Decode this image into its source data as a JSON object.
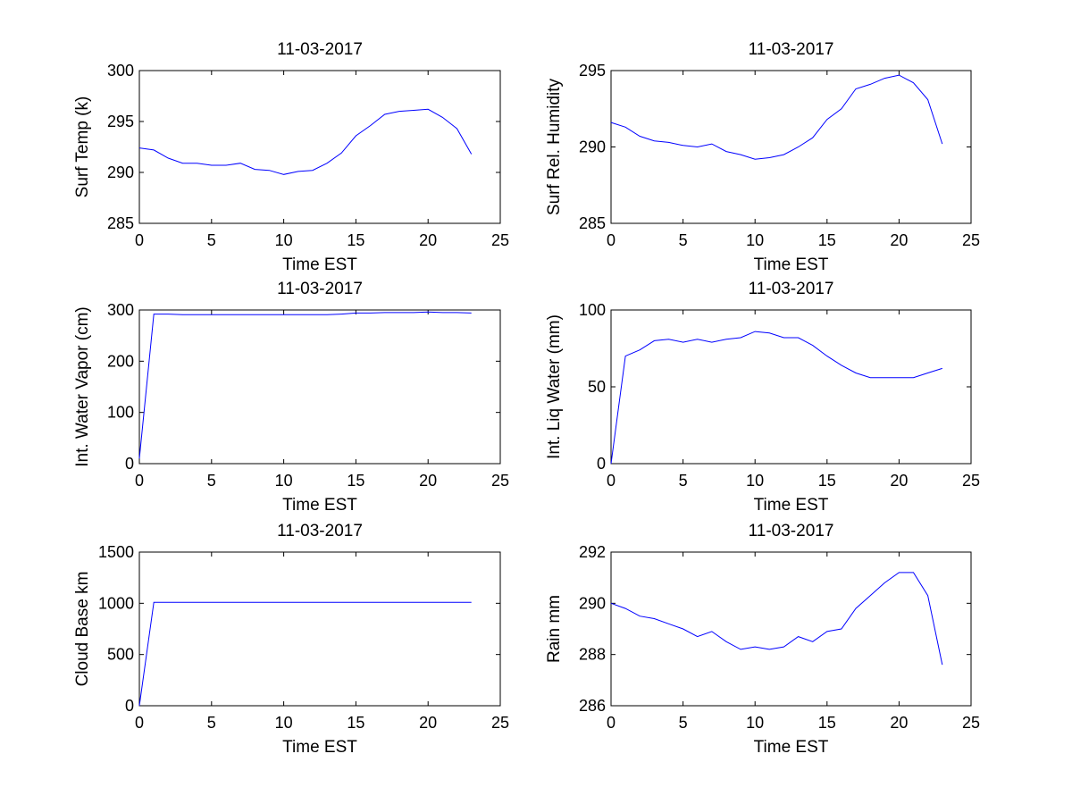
{
  "chart_data": [
    {
      "type": "line",
      "title": "11-03-2017",
      "xlabel": "Time EST",
      "ylabel": "Surf Temp (k)",
      "xlim": [
        0,
        25
      ],
      "ylim": [
        285,
        300
      ],
      "xticks": [
        0,
        5,
        10,
        15,
        20,
        25
      ],
      "yticks": [
        285,
        290,
        295,
        300
      ],
      "grid": false,
      "series": [
        {
          "color": "#0000ff",
          "x": [
            0,
            1,
            2,
            3,
            4,
            5,
            6,
            7,
            8,
            9,
            10,
            11,
            12,
            13,
            14,
            15,
            16,
            17,
            18,
            19,
            20,
            21,
            22,
            23
          ],
          "y": [
            292.4,
            292.2,
            291.4,
            290.9,
            290.9,
            290.7,
            290.7,
            290.9,
            290.3,
            290.2,
            289.8,
            290.1,
            290.2,
            290.9,
            291.9,
            293.6,
            294.6,
            295.7,
            296.0,
            296.1,
            296.2,
            295.4,
            294.3,
            291.8
          ]
        }
      ]
    },
    {
      "type": "line",
      "title": "11-03-2017",
      "xlabel": "Time EST",
      "ylabel": "Surf Rel. Humidity",
      "xlim": [
        0,
        25
      ],
      "ylim": [
        285,
        295
      ],
      "xticks": [
        0,
        5,
        10,
        15,
        20,
        25
      ],
      "yticks": [
        285,
        290,
        295
      ],
      "grid": false,
      "series": [
        {
          "color": "#0000ff",
          "x": [
            0,
            1,
            2,
            3,
            4,
            5,
            6,
            7,
            8,
            9,
            10,
            11,
            12,
            13,
            14,
            15,
            16,
            17,
            18,
            19,
            20,
            21,
            22,
            23
          ],
          "y": [
            291.6,
            291.3,
            290.7,
            290.4,
            290.3,
            290.1,
            290.0,
            290.2,
            289.7,
            289.5,
            289.2,
            289.3,
            289.5,
            290.0,
            290.6,
            291.8,
            292.5,
            293.8,
            294.1,
            294.5,
            294.7,
            294.2,
            293.1,
            290.2
          ]
        }
      ]
    },
    {
      "type": "line",
      "title": "11-03-2017",
      "xlabel": "Time EST",
      "ylabel": "Int. Water Vapor (cm)",
      "xlim": [
        0,
        25
      ],
      "ylim": [
        0,
        300
      ],
      "xticks": [
        0,
        5,
        10,
        15,
        20,
        25
      ],
      "yticks": [
        0,
        100,
        200,
        300
      ],
      "grid": false,
      "series": [
        {
          "color": "#0000ff",
          "x": [
            0,
            1,
            2,
            3,
            4,
            5,
            6,
            7,
            8,
            9,
            10,
            11,
            12,
            13,
            14,
            15,
            16,
            17,
            18,
            19,
            20,
            21,
            22,
            23
          ],
          "y": [
            10,
            292,
            292,
            291,
            291,
            291,
            291,
            291,
            291,
            291,
            291,
            291,
            291,
            291,
            292,
            294,
            294,
            295,
            295,
            295,
            296,
            295,
            295,
            294
          ]
        }
      ]
    },
    {
      "type": "line",
      "title": "11-03-2017",
      "xlabel": "Time EST",
      "ylabel": "Int. Liq Water (mm)",
      "xlim": [
        0,
        25
      ],
      "ylim": [
        0,
        100
      ],
      "xticks": [
        0,
        5,
        10,
        15,
        20,
        25
      ],
      "yticks": [
        0,
        50,
        100
      ],
      "grid": false,
      "series": [
        {
          "color": "#0000ff",
          "x": [
            0,
            1,
            2,
            3,
            4,
            5,
            6,
            7,
            8,
            9,
            10,
            11,
            12,
            13,
            14,
            15,
            16,
            17,
            18,
            19,
            20,
            21,
            22,
            23
          ],
          "y": [
            0,
            70,
            74,
            80,
            81,
            79,
            81,
            79,
            81,
            82,
            86,
            85,
            82,
            82,
            77,
            70,
            64,
            59,
            56,
            56,
            56,
            56,
            59,
            62
          ]
        }
      ]
    },
    {
      "type": "line",
      "title": "11-03-2017",
      "xlabel": "Time EST",
      "ylabel": "Cloud Base km",
      "xlim": [
        0,
        25
      ],
      "ylim": [
        0,
        1500
      ],
      "xticks": [
        0,
        5,
        10,
        15,
        20,
        25
      ],
      "yticks": [
        0,
        500,
        1000,
        1500
      ],
      "grid": false,
      "series": [
        {
          "color": "#0000ff",
          "x": [
            0,
            1,
            2,
            3,
            4,
            5,
            6,
            7,
            8,
            9,
            10,
            11,
            12,
            13,
            14,
            15,
            16,
            17,
            18,
            19,
            20,
            21,
            22,
            23
          ],
          "y": [
            0,
            1010,
            1010,
            1010,
            1010,
            1010,
            1010,
            1010,
            1010,
            1010,
            1010,
            1010,
            1010,
            1010,
            1010,
            1010,
            1010,
            1010,
            1010,
            1010,
            1010,
            1010,
            1010,
            1010
          ]
        }
      ]
    },
    {
      "type": "line",
      "title": "11-03-2017",
      "xlabel": "Time EST",
      "ylabel": "Rain mm",
      "xlim": [
        0,
        25
      ],
      "ylim": [
        286,
        292
      ],
      "xticks": [
        0,
        5,
        10,
        15,
        20,
        25
      ],
      "yticks": [
        286,
        288,
        290,
        292
      ],
      "grid": false,
      "series": [
        {
          "color": "#0000ff",
          "x": [
            0,
            1,
            2,
            3,
            4,
            5,
            6,
            7,
            8,
            9,
            10,
            11,
            12,
            13,
            14,
            15,
            16,
            17,
            18,
            19,
            20,
            21,
            22,
            23
          ],
          "y": [
            290.0,
            289.8,
            289.5,
            289.4,
            289.2,
            289.0,
            288.7,
            288.9,
            288.5,
            288.2,
            288.3,
            288.2,
            288.3,
            288.7,
            288.5,
            288.9,
            289.0,
            289.8,
            290.3,
            290.8,
            291.2,
            291.2,
            290.3,
            287.6
          ]
        }
      ]
    }
  ]
}
